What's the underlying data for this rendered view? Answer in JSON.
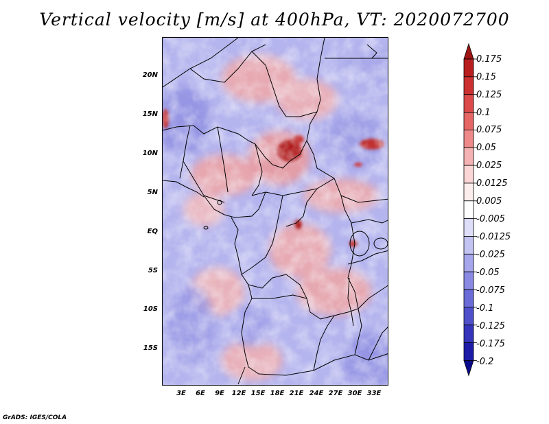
{
  "title": "Vertical velocity [m/s] at 400hPa, VT: 2020072700",
  "footer": "GrADS: IGES/COLA",
  "map": {
    "lat_labels": [
      "20N",
      "15N",
      "10N",
      "5N",
      "EQ",
      "5S",
      "10S",
      "15S"
    ],
    "lon_labels": [
      "3E",
      "6E",
      "9E",
      "12E",
      "15E",
      "18E",
      "21E",
      "24E",
      "27E",
      "30E",
      "33E"
    ]
  },
  "colorbar": {
    "levels": [
      "0.175",
      "0.15",
      "0.125",
      "0.1",
      "0.075",
      "0.05",
      "0.025",
      "0.0125",
      "0.005",
      "-0.005",
      "-0.0125",
      "-0.025",
      "-0.05",
      "-0.075",
      "-0.1",
      "-0.125",
      "-0.175",
      "-0.2"
    ],
    "colors": [
      "#a01414",
      "#b81e1e",
      "#cc3030",
      "#dc4a4a",
      "#e66666",
      "#ee8a8a",
      "#f5b2b2",
      "#fbd6d6",
      "#fdeeee",
      "#ffffff",
      "#dedef8",
      "#c4c4f2",
      "#a6a6ec",
      "#8a8ae4",
      "#6c6cd8",
      "#5050cc",
      "#3434bc",
      "#1c1ca8",
      "#0a0a8c"
    ],
    "top_color": "#a01414",
    "bottom_color": "#0a0a8c"
  }
}
